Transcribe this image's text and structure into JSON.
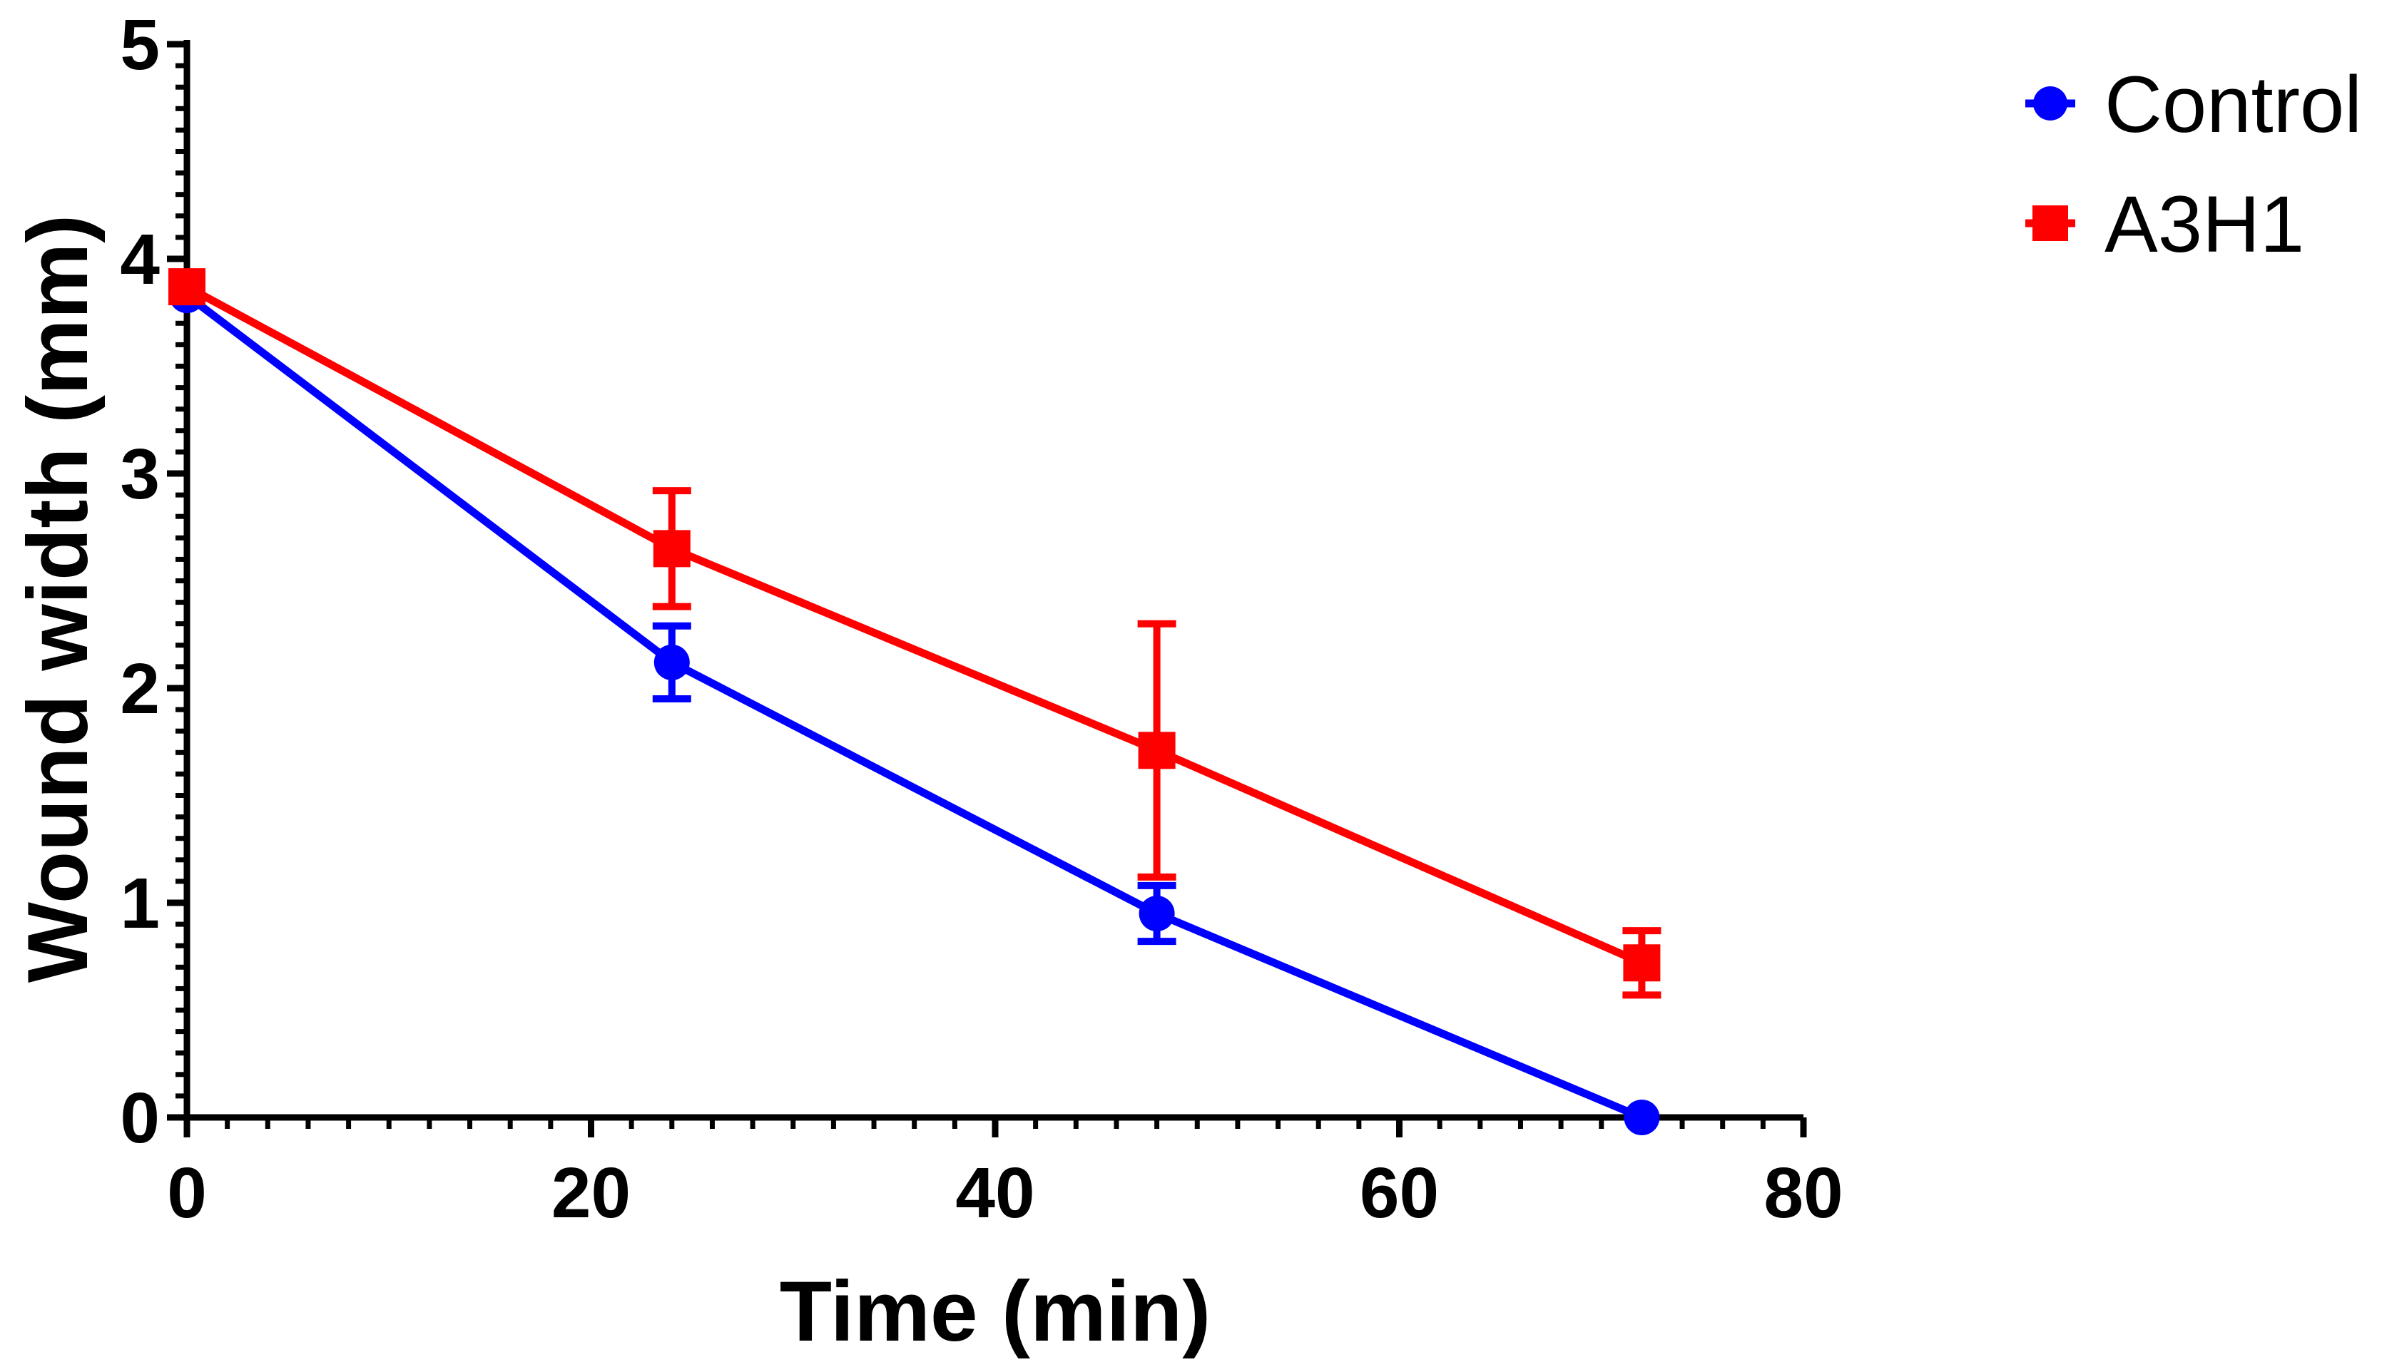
{
  "chart_data": {
    "type": "line",
    "title": "",
    "xlabel": "Time (min)",
    "ylabel": "Wound width (mm)",
    "xlim": [
      0,
      80
    ],
    "ylim": [
      0,
      5
    ],
    "x_ticks": [
      0,
      20,
      40,
      60,
      80
    ],
    "y_ticks": [
      0,
      1,
      2,
      3,
      4,
      5
    ],
    "grid": false,
    "legend_position": "top-right",
    "series": [
      {
        "name": "Control",
        "color": "#0000ff",
        "marker": "circle",
        "x": [
          0,
          24,
          48,
          72
        ],
        "y": [
          3.83,
          2.12,
          0.95,
          0.0
        ],
        "error": [
          0.0,
          0.17,
          0.13,
          0.0
        ]
      },
      {
        "name": "A3H1",
        "color": "#ff0000",
        "marker": "square",
        "x": [
          0,
          24,
          48,
          72
        ],
        "y": [
          3.87,
          2.65,
          1.71,
          0.72
        ],
        "error": [
          0.0,
          0.27,
          0.59,
          0.15
        ]
      }
    ]
  }
}
